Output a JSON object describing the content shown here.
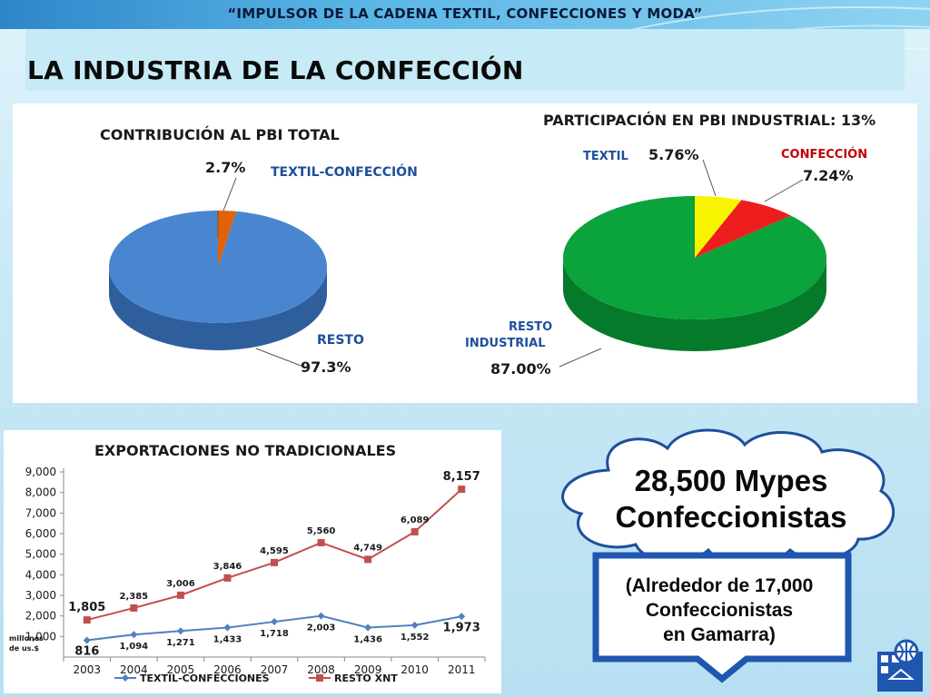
{
  "slide": {
    "subtitle": "“IMPULSOR DE LA CADENA TEXTIL, CONFECCIONES Y MODA”",
    "title": "LA INDUSTRIA DE LA CONFECCIÓN"
  },
  "colors": {
    "blue": "#4a86cf",
    "orange": "#e0620d",
    "green": "#0aa33c",
    "yellow": "#f8f400",
    "red": "#ee1d1d",
    "label_blue": "#1f4e9c",
    "line_blue": "#4f81bd",
    "line_red": "#c0504d"
  },
  "chart_data": [
    {
      "type": "pie",
      "title": "CONTRIBUCIÓN AL PBI TOTAL",
      "slices": [
        {
          "label": "RESTO",
          "value": 97.3,
          "value_label": "97.3%"
        },
        {
          "label": "TEXTIL-CONFECCIÓN",
          "value": 2.7,
          "value_label": "2.7%"
        }
      ]
    },
    {
      "type": "pie",
      "title": "PARTICIPACIÓN EN PBI INDUSTRIAL: 13%",
      "slices": [
        {
          "label": "TEXTIL",
          "value": 5.76,
          "value_label": "5.76%"
        },
        {
          "label": "CONFECCIÓN",
          "value": 7.24,
          "value_label": "7.24%"
        },
        {
          "label": "RESTO INDUSTRIAL",
          "value": 87.0,
          "value_label": "87.00%"
        }
      ]
    },
    {
      "type": "line",
      "title": "EXPORTACIONES NO TRADICIONALES",
      "ylabel": "millones de us.$",
      "ylim": [
        0,
        9000
      ],
      "yticks": [
        "1,000",
        "2,000",
        "3,000",
        "4,000",
        "5,000",
        "6,000",
        "7,000",
        "8,000",
        "9,000"
      ],
      "categories": [
        "2003",
        "2004",
        "2005",
        "2006",
        "2007",
        "2008",
        "2009",
        "2010",
        "2011"
      ],
      "series": [
        {
          "name": "TEXTIL-CONFECCIONES",
          "values": [
            816,
            1094,
            1271,
            1433,
            1718,
            2003,
            1436,
            1552,
            1973
          ],
          "labels": [
            "816",
            "1,094",
            "1,271",
            "1,433",
            "1,718",
            "2,003",
            "1,436",
            "1,552",
            "1,973"
          ]
        },
        {
          "name": "RESTO XNT",
          "values": [
            1805,
            2385,
            3006,
            3846,
            4595,
            5560,
            4749,
            6089,
            8157
          ],
          "labels": [
            "1,805",
            "2,385",
            "3,006",
            "3,846",
            "4,595",
            "5,560",
            "4,749",
            "6,089",
            "8,157"
          ]
        }
      ]
    }
  ],
  "cloud": {
    "line1": "28,500 Mypes",
    "line2": "Confeccionistas"
  },
  "callout": {
    "line1": "(Alrededor de 17,000",
    "line2": "Confeccionistas",
    "line3": "en Gamarra)"
  },
  "logo": {
    "icon": "globe-hanger-icon"
  }
}
